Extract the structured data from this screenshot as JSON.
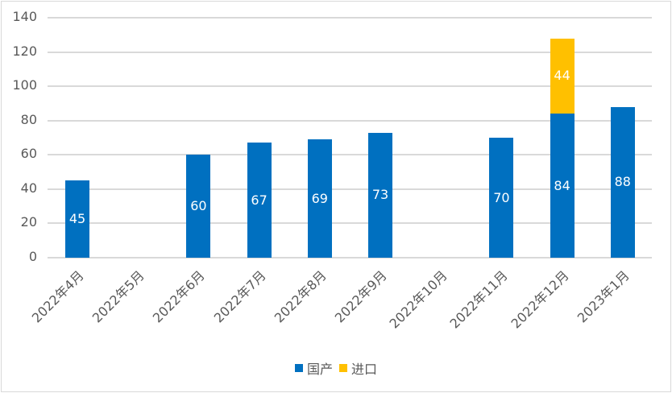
{
  "chart_data": {
    "type": "bar",
    "stacked": true,
    "title": "",
    "xlabel": "",
    "ylabel": "",
    "ylim": [
      0,
      140
    ],
    "yticks": [
      0,
      20,
      40,
      60,
      80,
      100,
      120,
      140
    ],
    "grid": true,
    "legend_position": "bottom",
    "categories": [
      "2022年4月",
      "2022年5月",
      "2022年6月",
      "2022年7月",
      "2022年8月",
      "2022年9月",
      "2022年10月",
      "2022年11月",
      "2022年12月",
      "2023年1月"
    ],
    "series": [
      {
        "name": "国产",
        "color": "#0070C0",
        "values": [
          45,
          null,
          60,
          67,
          69,
          73,
          null,
          70,
          84,
          88
        ]
      },
      {
        "name": "进口",
        "color": "#FFC000",
        "values": [
          null,
          null,
          null,
          null,
          null,
          null,
          null,
          null,
          44,
          null
        ]
      }
    ]
  },
  "legend": [
    {
      "label": "国产",
      "color": "#0070C0"
    },
    {
      "label": "进口",
      "color": "#FFC000"
    }
  ]
}
